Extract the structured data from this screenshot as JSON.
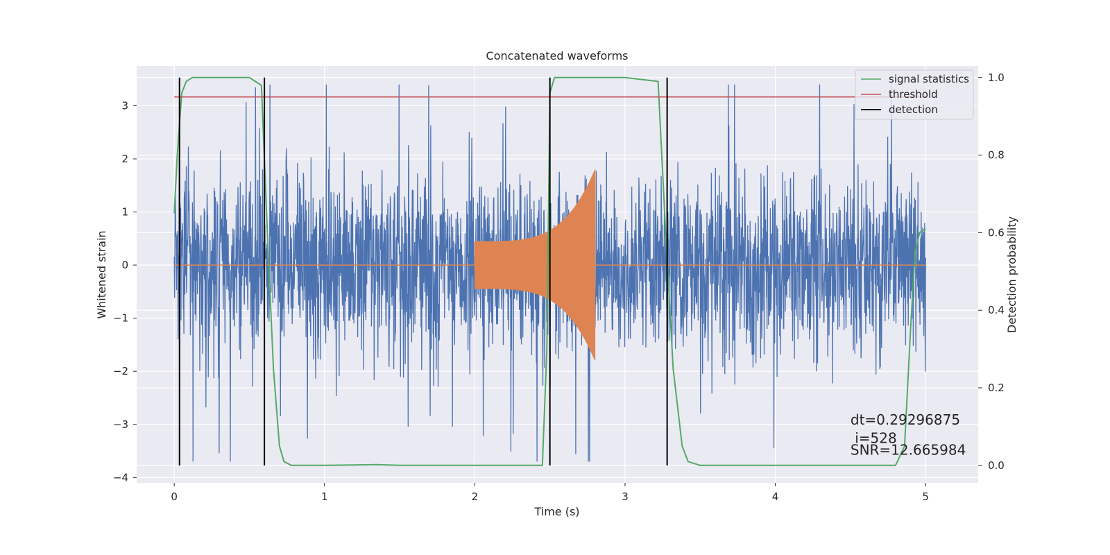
{
  "chart_data": {
    "type": "line",
    "title": "Concatenated waveforms",
    "xlabel": "Time (s)",
    "ylabel": "Whitened strain",
    "y2label": "Detection probability",
    "xlim": [
      -0.25,
      5.35
    ],
    "ylim": [
      -4.1,
      3.75
    ],
    "y2lim": [
      -0.045,
      1.03
    ],
    "xticks": [
      0,
      1,
      2,
      3,
      4,
      5
    ],
    "yticks": [
      -4,
      -3,
      -2,
      -1,
      0,
      1,
      2,
      3
    ],
    "y2ticks": [
      0.0,
      0.2,
      0.4,
      0.6,
      0.8,
      1.0
    ],
    "xtick_labels": [
      "0",
      "1",
      "2",
      "3",
      "4",
      "5"
    ],
    "ytick_labels": [
      "−4",
      "−3",
      "−2",
      "−1",
      "0",
      "1",
      "2",
      "3"
    ],
    "y2tick_labels": [
      "0.0",
      "0.2",
      "0.4",
      "0.6",
      "0.8",
      "1.0"
    ],
    "grid": true,
    "legend_position": "top-right",
    "colors": {
      "background": "#eaeaf2",
      "grid": "#ffffff",
      "strain": "#4c72b0",
      "template": "#dd8452",
      "signal_statistics": "#55a868",
      "threshold": "#c44e52",
      "detection": "#000000"
    },
    "strain": {
      "x_range": [
        0,
        5
      ],
      "typical_amplitude": 0.8,
      "peak_range": [
        -3.7,
        3.4
      ]
    },
    "template": {
      "segments": [
        {
          "start": 0,
          "end": 2.0,
          "y": 0
        },
        {
          "start": 2.0,
          "end": 2.8,
          "envelope_start": 0.45,
          "envelope_end": 1.8
        },
        {
          "start": 2.8,
          "end": 5.0,
          "y": 0
        }
      ]
    },
    "series": [
      {
        "name": "signal statistics",
        "x": [
          0.0,
          0.02,
          0.05,
          0.08,
          0.12,
          0.2,
          0.5,
          0.58,
          0.62,
          0.66,
          0.7,
          0.73,
          0.78,
          1.0,
          1.35,
          1.5,
          2.0,
          2.45,
          2.48,
          2.5,
          2.53,
          2.6,
          3.0,
          3.22,
          3.27,
          3.32,
          3.38,
          3.42,
          3.5,
          4.0,
          4.8,
          4.86,
          4.9,
          4.93,
          4.96,
          5.0
        ],
        "values": [
          0.65,
          0.8,
          0.96,
          0.99,
          1.0,
          1.0,
          1.0,
          0.98,
          0.6,
          0.25,
          0.05,
          0.01,
          0.0,
          0.0,
          0.002,
          0.0,
          0.0,
          0.0,
          0.3,
          0.96,
          1.0,
          1.0,
          1.0,
          0.99,
          0.6,
          0.25,
          0.05,
          0.01,
          0.0,
          0.0,
          0.0,
          0.05,
          0.35,
          0.55,
          0.6,
          0.61
        ]
      },
      {
        "name": "threshold",
        "x": [
          0,
          5
        ],
        "values": [
          0.95,
          0.95
        ]
      },
      {
        "name": "detection",
        "vertical_lines_x": [
          0.035,
          0.6,
          2.5,
          3.28
        ],
        "y_range": [
          0.0,
          1.0
        ]
      }
    ],
    "annotations": [
      {
        "text": "dt=0.29296875",
        "x": 4.5,
        "y": -3.0
      },
      {
        "text": " i=528",
        "x": 4.5,
        "y": -3.35
      },
      {
        "text": "SNR=12.665984",
        "x": 4.5,
        "y": -3.57
      }
    ]
  }
}
